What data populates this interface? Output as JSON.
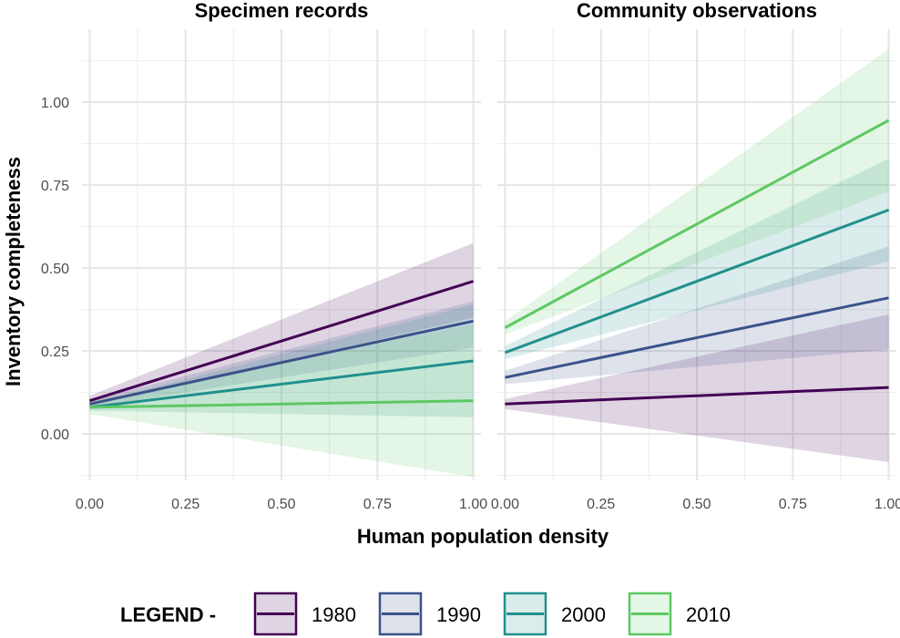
{
  "chart_data": {
    "type": "line",
    "facets": [
      "Specimen records",
      "Community observations"
    ],
    "xlabel": "Human population density",
    "ylabel": "Inventory completeness",
    "xlim": [
      -0.02,
      1.02
    ],
    "ylim": [
      -0.14,
      1.22
    ],
    "x_ticks": [
      0.0,
      0.25,
      0.5,
      0.75,
      1.0
    ],
    "x_tick_labels": [
      "0.00",
      "0.25",
      "0.50",
      "0.75",
      "1.00"
    ],
    "y_ticks": [
      0.0,
      0.25,
      0.5,
      0.75,
      1.0
    ],
    "y_tick_labels": [
      "0.00",
      "0.25",
      "0.50",
      "0.75",
      "1.00"
    ],
    "grid": true,
    "legend": {
      "title": "LEGEND -",
      "placement": "bottom",
      "entries": [
        "1980",
        "1990",
        "2000",
        "2010"
      ]
    },
    "series_colors": {
      "1980": "#440154",
      "1990": "#3b528b",
      "2000": "#21908c",
      "2010": "#5dc863"
    },
    "panels": [
      {
        "facet": "Specimen records",
        "series": [
          {
            "name": "1980",
            "x": [
              0,
              1
            ],
            "y": [
              0.1,
              0.46
            ],
            "ci_lower": [
              0.085,
              0.35
            ],
            "ci_upper": [
              0.115,
              0.575
            ]
          },
          {
            "name": "1990",
            "x": [
              0,
              1
            ],
            "y": [
              0.09,
              0.34
            ],
            "ci_lower": [
              0.08,
              0.26
            ],
            "ci_upper": [
              0.1,
              0.4
            ]
          },
          {
            "name": "2000",
            "x": [
              0,
              1
            ],
            "y": [
              0.08,
              0.22
            ],
            "ci_lower": [
              0.07,
              0.05
            ],
            "ci_upper": [
              0.09,
              0.39
            ]
          },
          {
            "name": "2010",
            "x": [
              0,
              1
            ],
            "y": [
              0.08,
              0.1
            ],
            "ci_lower": [
              0.06,
              -0.13
            ],
            "ci_upper": [
              0.1,
              0.33
            ]
          }
        ]
      },
      {
        "facet": "Community observations",
        "series": [
          {
            "name": "1980",
            "x": [
              0,
              1
            ],
            "y": [
              0.09,
              0.14
            ],
            "ci_lower": [
              0.075,
              -0.085
            ],
            "ci_upper": [
              0.105,
              0.36
            ]
          },
          {
            "name": "1990",
            "x": [
              0,
              1
            ],
            "y": [
              0.17,
              0.41
            ],
            "ci_lower": [
              0.15,
              0.255
            ],
            "ci_upper": [
              0.19,
              0.565
            ]
          },
          {
            "name": "2000",
            "x": [
              0,
              1
            ],
            "y": [
              0.245,
              0.675
            ],
            "ci_lower": [
              0.225,
              0.52
            ],
            "ci_upper": [
              0.265,
              0.83
            ]
          },
          {
            "name": "2010",
            "x": [
              0,
              1
            ],
            "y": [
              0.32,
              0.945
            ],
            "ci_lower": [
              0.3,
              0.73
            ],
            "ci_upper": [
              0.34,
              1.16
            ]
          }
        ]
      }
    ]
  }
}
